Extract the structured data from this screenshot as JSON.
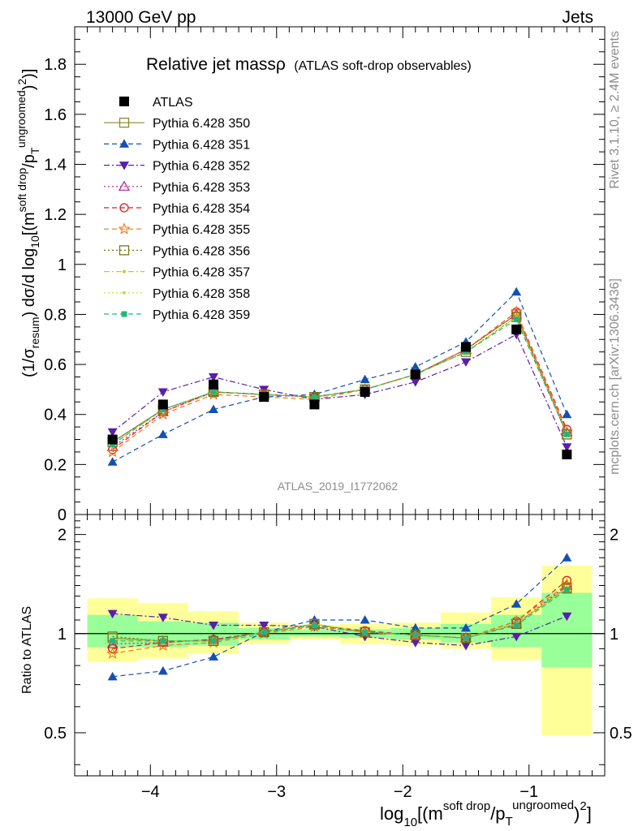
{
  "header": {
    "left": "13000 GeV pp",
    "right": "Jets"
  },
  "side_labels": {
    "rivet": "Rivet 3.1.10, ≥ 2.4M events",
    "mcplots": "mcplots.cern.ch [arXiv:1306.3436]"
  },
  "watermark": "ATLAS_2019_I1772062",
  "plot_title": {
    "main": "Relative jet massρ",
    "sub": "(ATLAS soft-drop observables)"
  },
  "axis_text": {
    "y_main_lead": "(1/σ",
    "y_main_sub1": "resum",
    "y_main_mid": ") dσ/d log",
    "y_main_sub2": "10",
    "y_main_tail": "[(m",
    "y_main_sup1": "soft drop",
    "y_main_slash": "/p",
    "y_main_sub3": "T",
    "y_main_sup2": "ungroomed",
    "y_main_end": ")",
    "y_main_sup3": "2",
    "y_main_close": ")]",
    "y_ratio": "Ratio to ATLAS",
    "x_lead": "log",
    "x_sub": "10",
    "x_mid": "[(m",
    "x_sup1": "soft drop",
    "x_slash": "/p",
    "x_sub2": "T",
    "x_sup2": "ungroomed",
    "x_end": ")",
    "x_sup3": "2",
    "x_close": "]"
  },
  "colors": {
    "ATLAS": "#000000",
    "Pythia 6.428 350": "#8a8a2e",
    "Pythia 6.428 351": "#1450b4",
    "Pythia 6.428 352": "#5a1eaa",
    "Pythia 6.428 353": "#b41e8c",
    "Pythia 6.428 354": "#dc1e1e",
    "Pythia 6.428 355": "#f07814",
    "Pythia 6.428 356": "#787814",
    "Pythia 6.428 357": "#d2c814",
    "Pythia 6.428 358": "#c8dc1e",
    "Pythia 6.428 359": "#28b478",
    "band_inner": "#99ff99",
    "band_outer": "#ffff99"
  },
  "chart_data": {
    "type": "line",
    "x": [
      -4.3,
      -3.9,
      -3.5,
      -3.1,
      -2.7,
      -2.3,
      -1.9,
      -1.5,
      -1.1,
      -0.7
    ],
    "bin_edges": [
      -4.5,
      -4.1,
      -3.7,
      -3.3,
      -2.9,
      -2.5,
      -2.1,
      -1.7,
      -1.3,
      -0.9,
      -0.5
    ],
    "xlim": [
      -4.6,
      -0.4
    ],
    "xticks": [
      -4,
      -3,
      -2,
      -1
    ],
    "xtick_labels": [
      "−4",
      "−3",
      "−2",
      "−1"
    ],
    "main": {
      "ylim": [
        0,
        1.95
      ],
      "yticks": [
        0,
        0.2,
        0.4,
        0.6,
        0.8,
        1,
        1.2,
        1.4,
        1.6,
        1.8
      ],
      "ytick_labels": [
        "0",
        "0.2",
        "0.4",
        "0.6",
        "0.8",
        "1",
        "1.2",
        "1.4",
        "1.6",
        "1.8"
      ]
    },
    "ratio": {
      "ylim": [
        0.37,
        2.3
      ],
      "log": true,
      "yticks": [
        0.5,
        1,
        2
      ],
      "ytick_labels": [
        "0.5",
        "1",
        "2"
      ],
      "band_inner": [
        [
          0.91,
          1.14
        ],
        [
          0.91,
          1.09
        ],
        [
          0.92,
          1.08
        ],
        [
          0.96,
          1.04
        ],
        [
          0.98,
          1.03
        ],
        [
          0.97,
          1.03
        ],
        [
          0.96,
          1.04
        ],
        [
          0.94,
          1.07
        ],
        [
          0.91,
          1.14
        ],
        [
          0.79,
          1.33
        ]
      ],
      "band_outer": [
        [
          0.82,
          1.28
        ],
        [
          0.84,
          1.24
        ],
        [
          0.87,
          1.17
        ],
        [
          0.93,
          1.08
        ],
        [
          0.96,
          1.06
        ],
        [
          0.93,
          1.07
        ],
        [
          0.92,
          1.08
        ],
        [
          0.9,
          1.16
        ],
        [
          0.83,
          1.29
        ],
        [
          0.49,
          1.61
        ]
      ]
    },
    "series": [
      {
        "name": "ATLAS",
        "marker": "filled-square",
        "dash": "none",
        "values": [
          0.3,
          0.44,
          0.52,
          0.47,
          0.44,
          0.49,
          0.56,
          0.67,
          0.74,
          0.24
        ]
      },
      {
        "name": "Pythia 6.428 350",
        "marker": "open-square",
        "dash": "solid",
        "values": [
          0.29,
          0.42,
          0.49,
          0.48,
          0.47,
          0.5,
          0.56,
          0.66,
          0.8,
          0.32
        ],
        "ratio": [
          0.97,
          0.95,
          0.95,
          1.01,
          1.07,
          1.01,
          0.99,
          0.97,
          1.07,
          1.38
        ]
      },
      {
        "name": "Pythia 6.428 351",
        "marker": "filled-triangle-up",
        "dash": "dashed",
        "values": [
          0.21,
          0.32,
          0.42,
          0.47,
          0.48,
          0.54,
          0.59,
          0.69,
          0.89,
          0.4
        ],
        "ratio": [
          0.74,
          0.77,
          0.85,
          1.01,
          1.1,
          1.1,
          1.04,
          1.04,
          1.23,
          1.7
        ]
      },
      {
        "name": "Pythia 6.428 352",
        "marker": "filled-triangle-down",
        "dash": "dashdot",
        "values": [
          0.33,
          0.49,
          0.55,
          0.5,
          0.46,
          0.48,
          0.53,
          0.61,
          0.72,
          0.27
        ],
        "ratio": [
          1.15,
          1.12,
          1.06,
          1.06,
          1.05,
          0.98,
          0.94,
          0.92,
          0.98,
          1.13
        ]
      },
      {
        "name": "Pythia 6.428 353",
        "marker": "open-triangle-up",
        "dash": "dotted",
        "values": [
          0.27,
          0.41,
          0.49,
          0.48,
          0.47,
          0.5,
          0.56,
          0.66,
          0.8,
          0.33
        ],
        "ratio": [
          0.93,
          0.94,
          0.96,
          1.01,
          1.06,
          1.01,
          0.99,
          0.97,
          1.07,
          1.4
        ]
      },
      {
        "name": "Pythia 6.428 354",
        "marker": "open-circle",
        "dash": "dashed",
        "values": [
          0.26,
          0.41,
          0.49,
          0.48,
          0.47,
          0.5,
          0.56,
          0.66,
          0.81,
          0.34
        ],
        "ratio": [
          0.9,
          0.94,
          0.96,
          1.01,
          1.06,
          1.02,
          0.99,
          0.97,
          1.09,
          1.45
        ]
      },
      {
        "name": "Pythia 6.428 355",
        "marker": "open-star",
        "dash": "dashed",
        "values": [
          0.25,
          0.4,
          0.48,
          0.47,
          0.46,
          0.5,
          0.56,
          0.66,
          0.81,
          0.33
        ],
        "ratio": [
          0.87,
          0.92,
          0.94,
          1.0,
          1.05,
          1.01,
          0.99,
          0.97,
          1.09,
          1.41
        ]
      },
      {
        "name": "Pythia 6.428 356",
        "marker": "open-square",
        "dash": "dotted",
        "values": [
          0.29,
          0.42,
          0.49,
          0.48,
          0.47,
          0.5,
          0.56,
          0.65,
          0.79,
          0.32
        ],
        "ratio": [
          0.98,
          0.95,
          0.95,
          1.01,
          1.07,
          1.01,
          0.99,
          0.97,
          1.07,
          1.37
        ]
      },
      {
        "name": "Pythia 6.428 357",
        "marker": "small-dot",
        "dash": "dashdot",
        "values": [
          0.28,
          0.42,
          0.49,
          0.48,
          0.47,
          0.5,
          0.56,
          0.65,
          0.79,
          0.32
        ],
        "ratio": [
          0.96,
          0.95,
          0.95,
          1.01,
          1.07,
          1.01,
          0.99,
          0.97,
          1.07,
          1.38
        ]
      },
      {
        "name": "Pythia 6.428 358",
        "marker": "small-dot",
        "dash": "dotted",
        "values": [
          0.28,
          0.42,
          0.49,
          0.48,
          0.47,
          0.5,
          0.56,
          0.65,
          0.79,
          0.32
        ],
        "ratio": [
          0.96,
          0.95,
          0.95,
          1.01,
          1.07,
          1.01,
          0.99,
          0.97,
          1.07,
          1.37
        ]
      },
      {
        "name": "Pythia 6.428 359",
        "marker": "filled-square-small",
        "dash": "dashed",
        "values": [
          0.28,
          0.42,
          0.49,
          0.48,
          0.47,
          0.5,
          0.56,
          0.65,
          0.78,
          0.32
        ],
        "ratio": [
          0.95,
          0.95,
          0.95,
          1.01,
          1.06,
          1.01,
          0.99,
          0.97,
          1.06,
          1.36
        ]
      }
    ]
  }
}
